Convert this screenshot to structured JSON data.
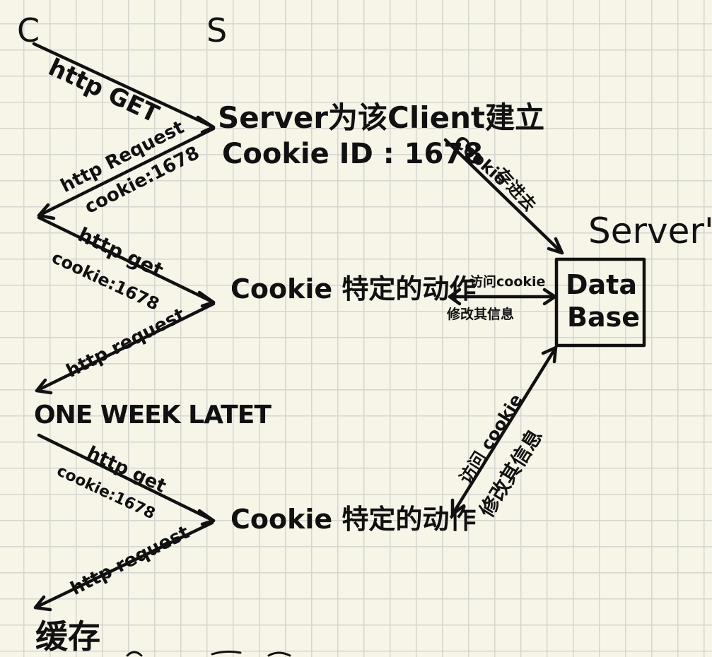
{
  "columns": {
    "client": "C",
    "server": "S"
  },
  "database": {
    "title": "Server's",
    "label_line1": "Data",
    "label_line2": "Base"
  },
  "server_create": {
    "line1": "Server为该Client建立",
    "line2": "Cookie ID : 1678"
  },
  "cookie_store": {
    "line1": "Cookie",
    "line2": "存进去"
  },
  "action_1": "Cookie 特定的动作",
  "action_2": "Cookie 特定的动作",
  "db_link_1": {
    "access": "访问cookie",
    "modify": "修改其信息"
  },
  "db_link_2": {
    "access": "访问 cookie",
    "modify": "修改其信息"
  },
  "arrows": {
    "a1": "http GET",
    "a2_line1": "http Request",
    "a2_line2": "cookie:1678",
    "a3_line1": "http get",
    "a3_line2": "cookie:1678",
    "a4": "http request",
    "a5_line1": "http get",
    "a5_line2": "cookie:1678",
    "a6": "http request"
  },
  "one_week_later": "ONE WEEK LATET",
  "cache": "缓存"
}
